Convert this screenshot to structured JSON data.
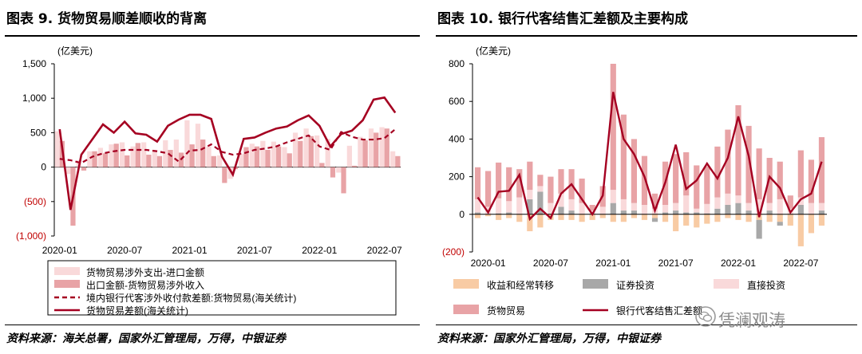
{
  "left": {
    "title": "图表 9. 货物贸易顺差顺收的背离",
    "source": "资料来源：海关总署，国家外汇管理局，万得，中银证券"
  },
  "right": {
    "title": "图表 10. 银行代客结售汇差额及主要构成",
    "source": "资料来源：国家外汇管理局，万得，中银证券"
  },
  "watermark": "凭澜观涛",
  "colors": {
    "dark_red": "#a50021",
    "bar_red": "#e8a3a6",
    "bar_light_pink": "#f9d9da",
    "bar_orange": "#f8cba4",
    "bar_gray": "#a8a8a8"
  },
  "chart_data": [
    {
      "type": "bar",
      "unit_label": "(亿美元)",
      "ylim": [
        -1000,
        1500
      ],
      "yticks": [
        "1,500",
        "1,000",
        "500",
        "0",
        "(500)",
        "(1,000)"
      ],
      "xticks": [
        "2020-01",
        "2020-07",
        "2021-01",
        "2021-07",
        "2022-01",
        "2022-07"
      ],
      "x": [
        "2020-01",
        "2020-02",
        "2020-03",
        "2020-04",
        "2020-05",
        "2020-06",
        "2020-07",
        "2020-08",
        "2020-09",
        "2020-10",
        "2020-11",
        "2020-12",
        "2021-01",
        "2021-02",
        "2021-03",
        "2021-04",
        "2021-05",
        "2021-06",
        "2021-07",
        "2021-08",
        "2021-09",
        "2021-10",
        "2021-11",
        "2021-12",
        "2022-01",
        "2022-02",
        "2022-03",
        "2022-04",
        "2022-05",
        "2022-06",
        "2022-07",
        "2022-08"
      ],
      "series": [
        {
          "name": "货物贸易涉外支出-进口金额",
          "kind": "bar",
          "color": "#f9d9da",
          "values": [
            520,
            -100,
            100,
            230,
            280,
            330,
            360,
            300,
            360,
            250,
            390,
            400,
            680,
            630,
            300,
            170,
            -170,
            190,
            340,
            380,
            370,
            290,
            500,
            560,
            460,
            410,
            -80,
            310,
            440,
            560,
            580,
            230
          ]
        },
        {
          "name": "出口金额-货物贸易涉外收入",
          "kind": "bar",
          "color": "#e8a3a6",
          "values": [
            380,
            -850,
            -50,
            230,
            200,
            340,
            170,
            350,
            180,
            160,
            250,
            210,
            330,
            400,
            160,
            -230,
            -30,
            290,
            300,
            250,
            300,
            200,
            380,
            450,
            60,
            -150,
            -380,
            20,
            390,
            500,
            560,
            160
          ]
        },
        {
          "name": "境内银行代客涉外收付款差额:货物贸易(海关统计)",
          "kind": "line-dashed",
          "color": "#a50021",
          "values": [
            120,
            100,
            60,
            150,
            200,
            230,
            250,
            250,
            250,
            230,
            200,
            80,
            240,
            250,
            330,
            220,
            180,
            200,
            250,
            270,
            300,
            360,
            410,
            460,
            300,
            250,
            510,
            440,
            400,
            400,
            420,
            550
          ]
        },
        {
          "name": "货物贸易差额(海关统计)",
          "kind": "line",
          "color": "#a50021",
          "values": [
            550,
            -620,
            180,
            400,
            620,
            500,
            660,
            490,
            470,
            370,
            600,
            690,
            760,
            760,
            700,
            150,
            -110,
            410,
            430,
            500,
            560,
            590,
            680,
            750,
            600,
            300,
            480,
            530,
            680,
            980,
            1010,
            790
          ]
        }
      ]
    },
    {
      "type": "bar",
      "stacked": true,
      "unit_label": "(亿美元)",
      "ylim": [
        -200,
        800
      ],
      "yticks": [
        "800",
        "600",
        "400",
        "200",
        "0",
        "(200)"
      ],
      "xticks": [
        "2020-01",
        "2020-07",
        "2021-01",
        "2021-07",
        "2022-01",
        "2022-07"
      ],
      "x": [
        "2019-12",
        "2020-01",
        "2020-02",
        "2020-03",
        "2020-04",
        "2020-05",
        "2020-06",
        "2020-07",
        "2020-08",
        "2020-09",
        "2020-10",
        "2020-11",
        "2020-12",
        "2021-01",
        "2021-02",
        "2021-03",
        "2021-04",
        "2021-05",
        "2021-06",
        "2021-07",
        "2021-08",
        "2021-09",
        "2021-10",
        "2021-11",
        "2021-12",
        "2022-01",
        "2022-02",
        "2022-03",
        "2022-04",
        "2022-05",
        "2022-06",
        "2022-07",
        "2022-08",
        "2022-09"
      ],
      "series": [
        {
          "name": "收益和经常转移",
          "kind": "bar",
          "color": "#f8cba4",
          "values": [
            -20,
            -10,
            -30,
            -20,
            -40,
            -90,
            -70,
            -30,
            -30,
            -30,
            -40,
            -30,
            -20,
            -40,
            -40,
            -20,
            -30,
            -20,
            -40,
            -90,
            -60,
            -70,
            -50,
            -40,
            -20,
            -30,
            -40,
            -30,
            -40,
            -40,
            -60,
            -170,
            -100,
            -60
          ]
        },
        {
          "name": "证券投资",
          "kind": "bar",
          "color": "#a8a8a8",
          "values": [
            10,
            0,
            5,
            10,
            0,
            80,
            120,
            0,
            40,
            20,
            0,
            0,
            0,
            60,
            20,
            20,
            0,
            -20,
            10,
            20,
            10,
            10,
            5,
            30,
            50,
            60,
            20,
            -100,
            20,
            -20,
            0,
            50,
            0,
            20
          ]
        },
        {
          "name": "直接投资",
          "kind": "bar",
          "color": "#f9d9da",
          "values": [
            70,
            40,
            80,
            60,
            90,
            50,
            30,
            60,
            70,
            60,
            60,
            20,
            40,
            70,
            60,
            40,
            50,
            30,
            40,
            40,
            90,
            20,
            50,
            60,
            60,
            40,
            40,
            80,
            40,
            80,
            30,
            40,
            60,
            40
          ]
        },
        {
          "name": "货物贸易",
          "kind": "bar",
          "color": "#e8a3a6",
          "values": [
            170,
            190,
            190,
            180,
            150,
            150,
            60,
            140,
            130,
            160,
            130,
            30,
            110,
            670,
            450,
            340,
            260,
            80,
            230,
            260,
            230,
            230,
            200,
            270,
            340,
            480,
            410,
            270,
            240,
            200,
            70,
            250,
            230,
            350
          ]
        },
        {
          "name": "银行代客结售汇差额",
          "kind": "line",
          "color": "#a50021",
          "values": [
            90,
            10,
            120,
            125,
            210,
            -25,
            30,
            -20,
            110,
            160,
            80,
            0,
            100,
            650,
            400,
            320,
            200,
            20,
            170,
            370,
            135,
            180,
            270,
            190,
            300,
            520,
            310,
            -15,
            200,
            140,
            10,
            80,
            110,
            280
          ]
        }
      ]
    }
  ]
}
